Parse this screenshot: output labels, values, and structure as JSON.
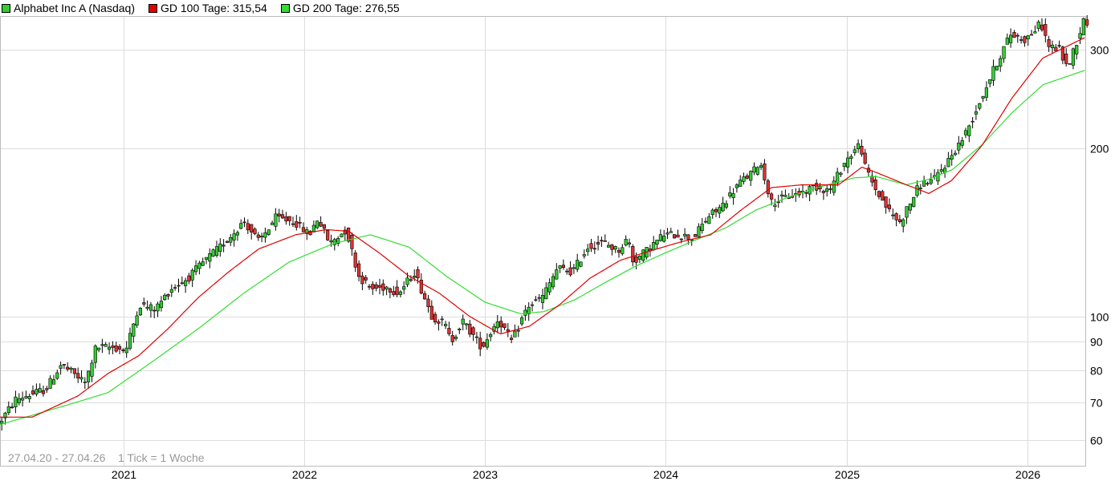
{
  "legend": [
    {
      "label": "Alphabet Inc A (Nasdaq)",
      "color": "#33cc33"
    },
    {
      "label": "GD 100 Tage: 315,54",
      "color": "#e00000"
    },
    {
      "label": "GD 200 Tage: 276,55",
      "color": "#33dd33"
    }
  ],
  "footer": {
    "range": "27.04.20 - 27.04.26",
    "tick": "1 Tick = 1 Woche"
  },
  "chart_data": {
    "type": "candlestick",
    "scale": "log",
    "ylim": [
      54,
      345
    ],
    "y_ticks": [
      60,
      70,
      80,
      90,
      100,
      200,
      300
    ],
    "x_range": [
      "2020-04-27",
      "2026-04-27"
    ],
    "x_ticks": [
      "2021",
      "2022",
      "2023",
      "2024",
      "2025",
      "2026"
    ],
    "grid": true,
    "legend_position": "top-left",
    "colors": {
      "up": "#33cc33",
      "down": "#dd3333",
      "gd100": "#e00000",
      "gd200": "#33dd33",
      "grid": "#dddddd"
    },
    "price_anchors": [
      [
        "2020-04-27",
        64
      ],
      [
        "2020-06-01",
        71
      ],
      [
        "2020-08-01",
        74
      ],
      [
        "2020-09-01",
        82
      ],
      [
        "2020-10-20",
        76
      ],
      [
        "2020-11-10",
        88
      ],
      [
        "2020-12-15",
        88
      ],
      [
        "2021-01-10",
        87
      ],
      [
        "2021-02-05",
        105
      ],
      [
        "2021-03-10",
        103
      ],
      [
        "2021-04-10",
        112
      ],
      [
        "2021-05-15",
        117
      ],
      [
        "2021-06-15",
        125
      ],
      [
        "2021-07-30",
        136
      ],
      [
        "2021-09-05",
        148
      ],
      [
        "2021-10-05",
        136
      ],
      [
        "2021-11-08",
        150
      ],
      [
        "2021-12-15",
        148
      ],
      [
        "2022-01-15",
        140
      ],
      [
        "2022-02-01",
        150
      ],
      [
        "2022-02-25",
        135
      ],
      [
        "2022-03-30",
        143
      ],
      [
        "2022-04-25",
        118
      ],
      [
        "2022-05-20",
        112
      ],
      [
        "2022-06-20",
        113
      ],
      [
        "2022-07-15",
        110
      ],
      [
        "2022-08-15",
        120
      ],
      [
        "2022-09-20",
        100
      ],
      [
        "2022-10-15",
        97
      ],
      [
        "2022-10-28",
        90
      ],
      [
        "2022-11-20",
        98
      ],
      [
        "2022-12-30",
        88
      ],
      [
        "2023-01-31",
        99
      ],
      [
        "2023-02-28",
        90
      ],
      [
        "2023-03-31",
        104
      ],
      [
        "2023-04-30",
        108
      ],
      [
        "2023-05-31",
        122
      ],
      [
        "2023-06-30",
        120
      ],
      [
        "2023-07-31",
        133
      ],
      [
        "2023-08-31",
        136
      ],
      [
        "2023-09-30",
        131
      ],
      [
        "2023-10-20",
        138
      ],
      [
        "2023-10-31",
        125
      ],
      [
        "2023-11-30",
        132
      ],
      [
        "2023-12-31",
        140
      ],
      [
        "2024-01-31",
        140
      ],
      [
        "2024-02-28",
        138
      ],
      [
        "2024-03-31",
        151
      ],
      [
        "2024-04-25",
        157
      ],
      [
        "2024-05-31",
        173
      ],
      [
        "2024-06-30",
        182
      ],
      [
        "2024-07-12",
        190
      ],
      [
        "2024-08-05",
        160
      ],
      [
        "2024-08-31",
        163
      ],
      [
        "2024-09-30",
        166
      ],
      [
        "2024-10-31",
        171
      ],
      [
        "2024-11-30",
        168
      ],
      [
        "2024-12-31",
        189
      ],
      [
        "2025-01-31",
        204
      ],
      [
        "2025-02-10",
        185
      ],
      [
        "2025-03-01",
        170
      ],
      [
        "2025-03-31",
        154
      ],
      [
        "2025-04-21",
        147
      ],
      [
        "2025-05-31",
        172
      ],
      [
        "2025-06-30",
        176
      ],
      [
        "2025-07-31",
        192
      ],
      [
        "2025-08-31",
        212
      ],
      [
        "2025-09-30",
        243
      ],
      [
        "2025-10-31",
        281
      ],
      [
        "2025-11-30",
        320
      ],
      [
        "2025-12-31",
        313
      ],
      [
        "2026-01-31",
        335
      ],
      [
        "2026-02-15",
        305
      ],
      [
        "2026-03-10",
        300
      ],
      [
        "2026-03-25",
        278
      ],
      [
        "2026-04-27",
        338
      ]
    ],
    "gd100_anchors": [
      [
        "2020-04-27",
        66
      ],
      [
        "2020-07-01",
        66
      ],
      [
        "2020-10-01",
        72
      ],
      [
        "2020-12-01",
        79
      ],
      [
        "2021-02-01",
        85
      ],
      [
        "2021-04-01",
        95
      ],
      [
        "2021-06-01",
        108
      ],
      [
        "2021-08-01",
        120
      ],
      [
        "2021-10-01",
        132
      ],
      [
        "2021-12-15",
        140
      ],
      [
        "2022-02-15",
        143
      ],
      [
        "2022-04-01",
        142
      ],
      [
        "2022-06-01",
        130
      ],
      [
        "2022-08-01",
        118
      ],
      [
        "2022-10-01",
        110
      ],
      [
        "2022-12-01",
        100
      ],
      [
        "2023-02-01",
        93
      ],
      [
        "2023-04-01",
        96
      ],
      [
        "2023-06-01",
        105
      ],
      [
        "2023-08-01",
        117
      ],
      [
        "2023-10-01",
        126
      ],
      [
        "2023-12-01",
        131
      ],
      [
        "2024-02-01",
        136
      ],
      [
        "2024-04-01",
        140
      ],
      [
        "2024-06-01",
        155
      ],
      [
        "2024-08-01",
        170
      ],
      [
        "2024-10-01",
        172
      ],
      [
        "2024-12-15",
        172
      ],
      [
        "2025-01-31",
        185
      ],
      [
        "2025-03-01",
        181
      ],
      [
        "2025-05-01",
        172
      ],
      [
        "2025-06-15",
        166
      ],
      [
        "2025-07-31",
        175
      ],
      [
        "2025-09-30",
        202
      ],
      [
        "2025-11-30",
        246
      ],
      [
        "2026-01-31",
        290
      ],
      [
        "2026-04-27",
        316
      ]
    ],
    "gd200_anchors": [
      [
        "2020-04-27",
        64
      ],
      [
        "2020-09-01",
        69
      ],
      [
        "2020-12-01",
        73
      ],
      [
        "2021-03-01",
        83
      ],
      [
        "2021-06-01",
        95
      ],
      [
        "2021-09-01",
        110
      ],
      [
        "2021-12-01",
        125
      ],
      [
        "2022-03-01",
        135
      ],
      [
        "2022-05-15",
        140
      ],
      [
        "2022-08-01",
        133
      ],
      [
        "2022-10-15",
        118
      ],
      [
        "2023-01-01",
        106
      ],
      [
        "2023-03-15",
        101
      ],
      [
        "2023-05-01",
        102
      ],
      [
        "2023-07-01",
        107
      ],
      [
        "2023-09-01",
        115
      ],
      [
        "2023-11-01",
        123
      ],
      [
        "2024-01-01",
        130
      ],
      [
        "2024-03-01",
        137
      ],
      [
        "2024-05-01",
        144
      ],
      [
        "2024-07-01",
        155
      ],
      [
        "2024-09-01",
        163
      ],
      [
        "2024-11-01",
        170
      ],
      [
        "2025-01-15",
        177
      ],
      [
        "2025-03-01",
        178
      ],
      [
        "2025-05-01",
        172
      ],
      [
        "2025-06-15",
        176
      ],
      [
        "2025-08-01",
        183
      ],
      [
        "2025-10-01",
        203
      ],
      [
        "2025-12-01",
        232
      ],
      [
        "2026-02-01",
        260
      ],
      [
        "2026-04-27",
        276
      ]
    ]
  }
}
